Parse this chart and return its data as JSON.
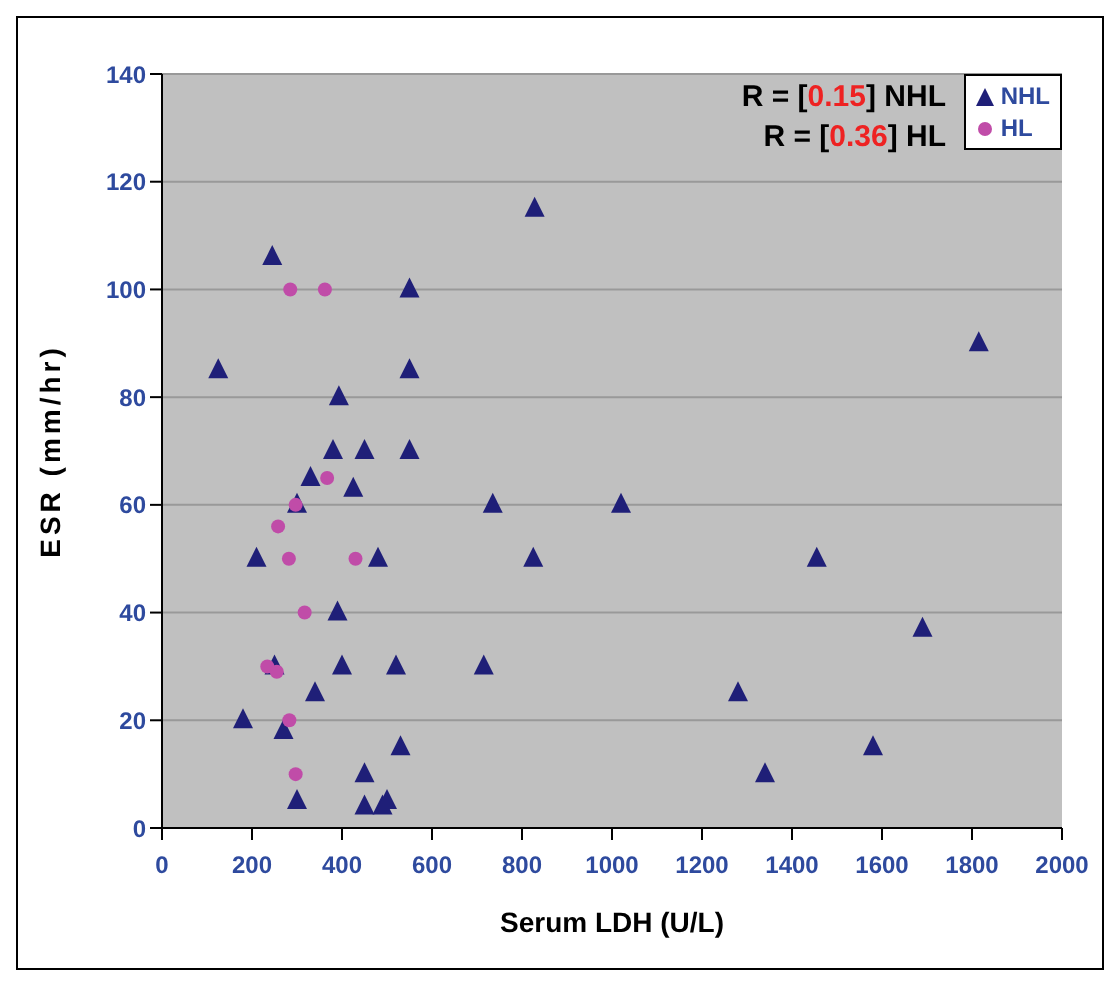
{
  "chart_data": {
    "type": "scatter",
    "xlabel": "Serum LDH (U/L)",
    "ylabel": "ESR (mm/hr)",
    "xlim": [
      0,
      2000
    ],
    "xticks": [
      0,
      200,
      400,
      600,
      800,
      1000,
      1200,
      1400,
      1600,
      1800,
      2000
    ],
    "ylim": [
      0,
      140
    ],
    "yticks": [
      0,
      20,
      40,
      60,
      80,
      100,
      120,
      140
    ],
    "grid": "y",
    "legend": "top right",
    "annotations": [
      "R = [0.15] NHL",
      "R = [0.36] HL"
    ],
    "series": [
      {
        "name": "NHL",
        "color": "#1f1f78",
        "marker": "triangle",
        "x": [
          125,
          245,
          550,
          550,
          393,
          380,
          450,
          550,
          330,
          425,
          300,
          735,
          210,
          480,
          825,
          390,
          250,
          400,
          520,
          715,
          340,
          180,
          270,
          530,
          450,
          300,
          450,
          490,
          500,
          828,
          1020,
          1280,
          1815,
          1455,
          1690,
          1340,
          1580
        ],
        "values": [
          85,
          106,
          100,
          85,
          80,
          70,
          70,
          70,
          65,
          63,
          60,
          60,
          50,
          50,
          50,
          40,
          30,
          30,
          30,
          30,
          25,
          20,
          18,
          15,
          10,
          5,
          4,
          4,
          5,
          115,
          60,
          25,
          90,
          50,
          37,
          10,
          15
        ]
      },
      {
        "name": "HL",
        "color": "#c04ca8",
        "marker": "circle",
        "x": [
          285,
          362,
          367,
          297,
          258,
          282,
          430,
          317,
          234,
          255,
          283,
          297
        ],
        "values": [
          100,
          100,
          65,
          60,
          56,
          50,
          50,
          40,
          30,
          29,
          20,
          10
        ]
      }
    ]
  }
}
